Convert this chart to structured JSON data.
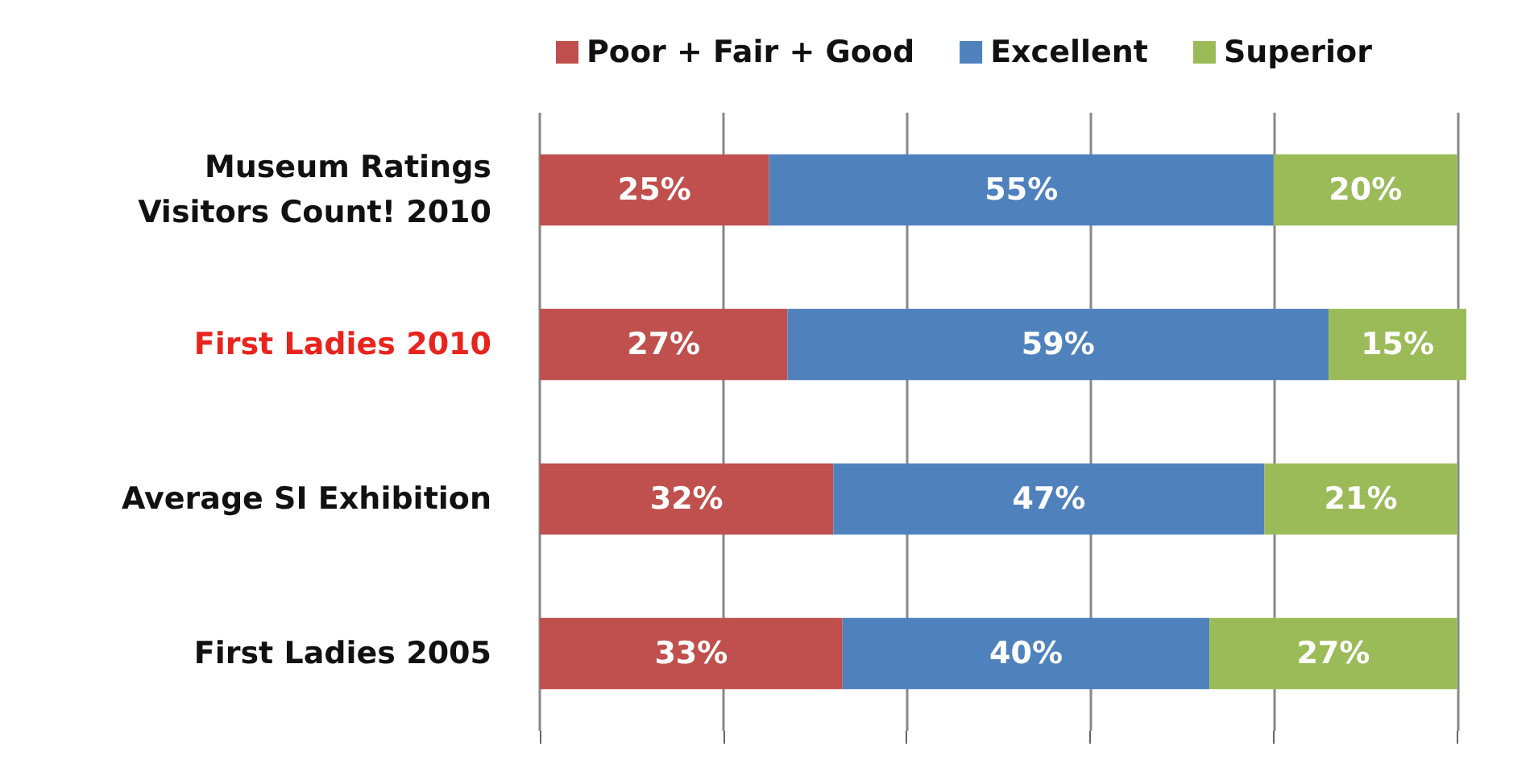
{
  "chart_data": {
    "type": "bar",
    "orientation": "horizontal",
    "stacked": true,
    "legend": "top",
    "grid": "x",
    "tick_labels": "y",
    "categories": [
      "Museum Ratings\nVisitors Count! 2010",
      "First Ladies 2010",
      "Average SI Exhibition",
      "First Ladies 2005"
    ],
    "xlim": [
      0,
      101
    ],
    "xticks": [
      {
        "value": 0,
        "label": null
      },
      {
        "value": 20,
        "label": null
      },
      {
        "value": 40,
        "label": null
      },
      {
        "value": 60,
        "label": null
      },
      {
        "value": 80,
        "label": null
      },
      {
        "value": 100,
        "label": null
      }
    ],
    "series": [
      {
        "name": "Poor + Fair + Good",
        "color": "#c0504d",
        "values": [
          25,
          27,
          32,
          33
        ],
        "value_labels": [
          "25%",
          "27%",
          "32%",
          "33%"
        ]
      },
      {
        "name": "Excellent",
        "color": "#4f81bd",
        "values": [
          55,
          59,
          47,
          40
        ],
        "value_labels": [
          "55%",
          "59%",
          "47%",
          "40%"
        ]
      },
      {
        "name": "Superior",
        "color": "#9bbb59",
        "values": [
          20,
          15,
          21,
          27
        ],
        "value_labels": [
          "20%",
          "15%",
          "21%",
          "27%"
        ]
      }
    ]
  }
}
